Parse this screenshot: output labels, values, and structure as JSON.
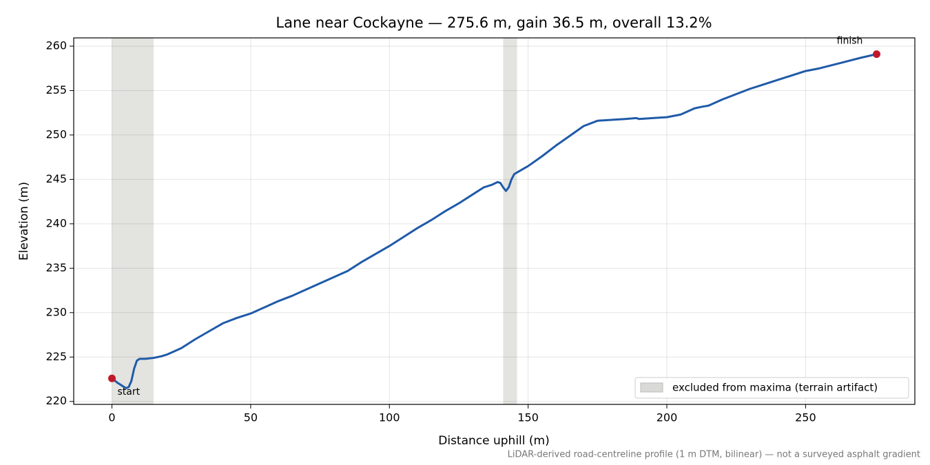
{
  "chart_data": {
    "type": "line",
    "title": "Lane near Cockayne — 275.6 m, gain 36.5 m, overall 13.2%",
    "x_label": "Distance uphill (m)",
    "y_label": "Elevation (m)",
    "footnote": "LiDAR-derived road-centreline profile (1 m DTM, bilinear) — not a surveyed asphalt gradient",
    "x": [
      0,
      2,
      4,
      5,
      6,
      7,
      8,
      9,
      10,
      12,
      15,
      18,
      20,
      25,
      30,
      35,
      40,
      45,
      50,
      55,
      60,
      65,
      70,
      75,
      80,
      85,
      90,
      95,
      100,
      105,
      110,
      115,
      120,
      125,
      130,
      134,
      137,
      139,
      140,
      141,
      142,
      143,
      144,
      145,
      150,
      155,
      160,
      165,
      170,
      175,
      180,
      185,
      189,
      190,
      195,
      200,
      205,
      210,
      213,
      215,
      220,
      225,
      230,
      235,
      240,
      245,
      250,
      255,
      260,
      265,
      270,
      275.6
    ],
    "series": [
      {
        "color": "#1f5aa8",
        "values": [
          222.6,
          222.1,
          221.7,
          221.5,
          221.6,
          222.3,
          223.7,
          224.6,
          224.8,
          224.8,
          224.9,
          225.1,
          225.3,
          226.0,
          227.0,
          227.9,
          228.8,
          229.4,
          229.9,
          230.6,
          231.3,
          231.9,
          232.6,
          233.3,
          234.0,
          234.7,
          235.7,
          236.6,
          237.5,
          238.5,
          239.5,
          240.4,
          241.4,
          242.3,
          243.3,
          244.1,
          244.4,
          244.7,
          244.6,
          244.1,
          243.7,
          244.1,
          245.0,
          245.6,
          246.5,
          247.6,
          248.8,
          249.9,
          251.0,
          251.6,
          251.7,
          251.8,
          251.9,
          251.8,
          251.9,
          252.0,
          252.3,
          253.0,
          253.2,
          253.3,
          254.0,
          254.6,
          255.2,
          255.7,
          256.2,
          256.7,
          257.2,
          257.5,
          257.9,
          258.3,
          258.7,
          259.1
        ]
      }
    ],
    "spans": {
      "name": "excluded from maxima (terrain artifact)",
      "color": "#d9d9d6",
      "ranges": [
        [
          0,
          15
        ],
        [
          141,
          146
        ]
      ]
    },
    "markers": [
      {
        "label": "start",
        "x": 0,
        "y": 222.6
      },
      {
        "label": "finish",
        "x": 275.6,
        "y": 259.1
      }
    ],
    "marker_color": "#c0182a",
    "xlim": [
      -13.78,
      289.38
    ],
    "ylim": [
      219.67,
      260.93
    ],
    "xticks": [
      0,
      50,
      100,
      150,
      200,
      250
    ],
    "yticks": [
      220,
      225,
      230,
      235,
      240,
      245,
      250,
      255,
      260
    ],
    "grid": true,
    "legend": "lower right"
  }
}
